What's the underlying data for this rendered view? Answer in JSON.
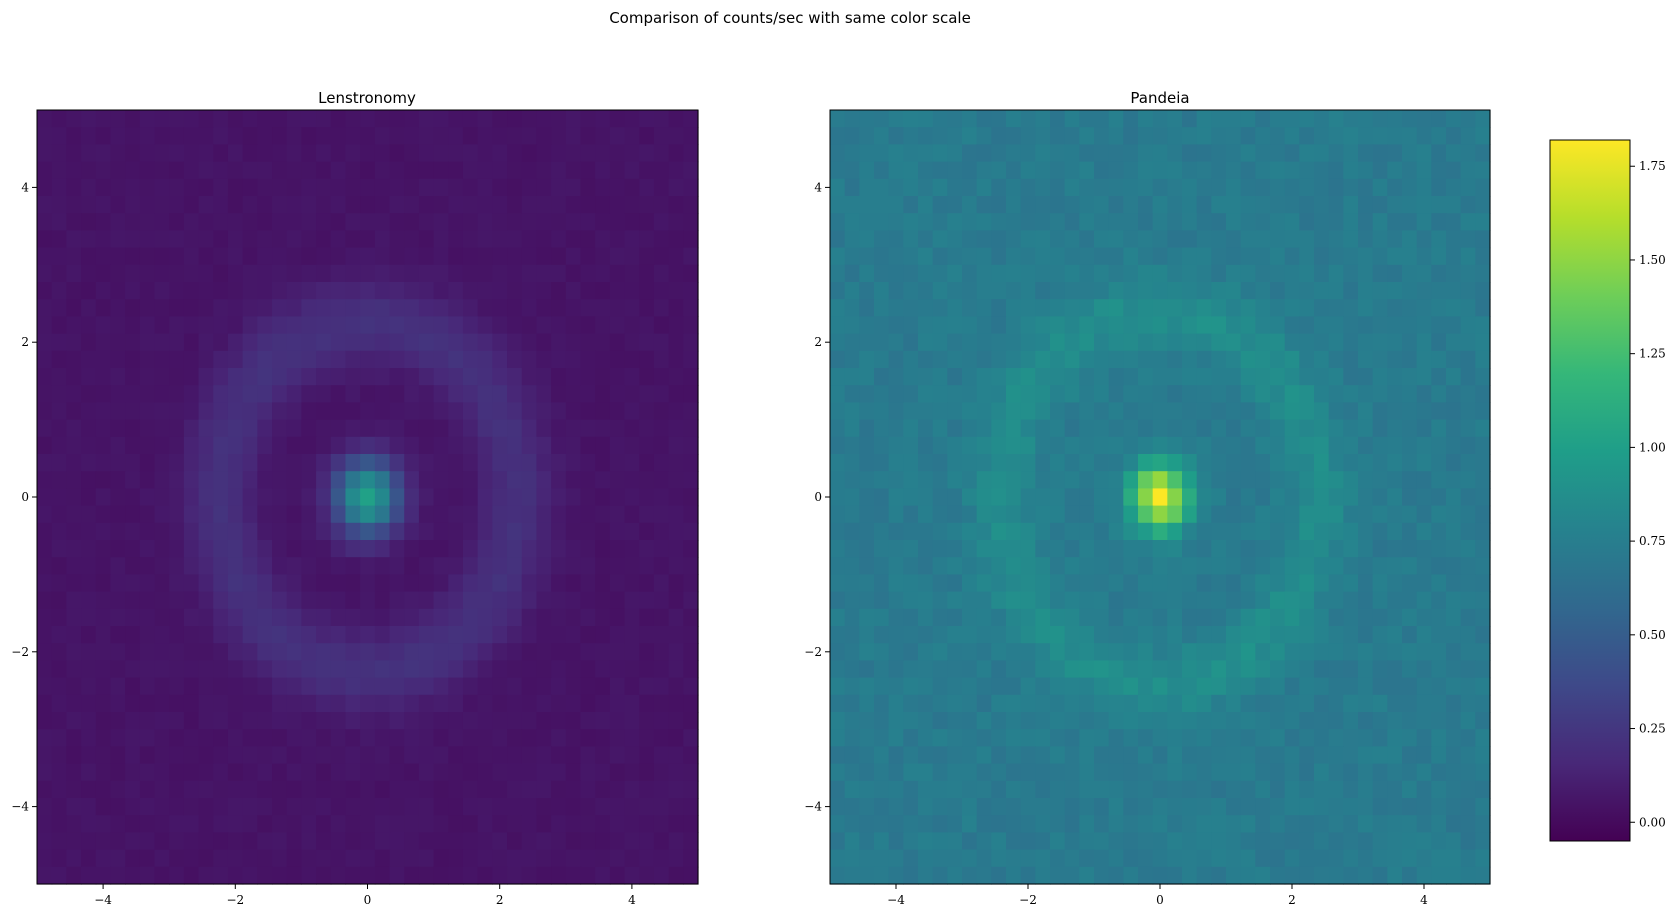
{
  "figure": {
    "suptitle": "Comparison of counts/sec with same color scale"
  },
  "chart_data": [
    {
      "type": "heatmap",
      "title": "Lenstronomy",
      "xlim": [
        -5,
        5
      ],
      "ylim": [
        -5,
        5
      ],
      "xticks": [
        -4,
        -2,
        0,
        2,
        4
      ],
      "yticks": [
        -4,
        -2,
        0,
        2,
        4
      ],
      "grid_size": 45,
      "background_level": 0.05,
      "noise": 0.018,
      "center_peak": 0.97,
      "center_sigma": 0.34,
      "ring_radius": 2.25,
      "ring_width": 0.38,
      "ring_amplitude": 0.17,
      "grid": false
    },
    {
      "type": "heatmap",
      "title": "Pandeia",
      "xlim": [
        -5,
        5
      ],
      "ylim": [
        -5,
        5
      ],
      "xticks": [
        -4,
        -2,
        0,
        2,
        4
      ],
      "yticks": [
        -4,
        -2,
        0,
        2,
        4
      ],
      "grid_size": 45,
      "background_level": 0.72,
      "noise": 0.05,
      "center_peak": 1.05,
      "center_sigma": 0.3,
      "ring_radius": 2.4,
      "ring_width": 0.32,
      "ring_amplitude": 0.15,
      "grid": false
    }
  ],
  "colorbar": {
    "colormap": "viridis",
    "vmin": -0.05,
    "vmax": 1.82,
    "ticks": [
      0.0,
      0.25,
      0.5,
      0.75,
      1.0,
      1.25,
      1.5,
      1.75
    ],
    "tick_labels": [
      "0.00",
      "0.25",
      "0.50",
      "0.75",
      "1.00",
      "1.25",
      "1.50",
      "1.75"
    ]
  },
  "colors": {
    "viridis_stops": [
      "#440154",
      "#482878",
      "#3e4989",
      "#31688e",
      "#26828e",
      "#1f9e89",
      "#35b779",
      "#6ece58",
      "#b5de2b",
      "#fde725"
    ]
  }
}
